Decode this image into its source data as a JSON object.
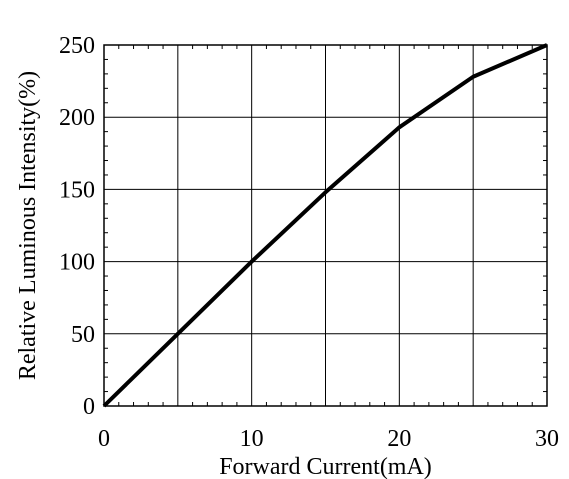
{
  "chart_data": {
    "type": "line",
    "title": "",
    "xlabel": "Forward Current(mA)",
    "ylabel": "Relative Luminous Intensity(%)",
    "xlim": [
      0,
      30
    ],
    "ylim": [
      0,
      250
    ],
    "grid": true,
    "x_ticks": [
      0,
      10,
      20,
      30
    ],
    "x_tick_labels": [
      "0",
      "10",
      "20",
      "30"
    ],
    "y_ticks": [
      0,
      50,
      100,
      150,
      200,
      250
    ],
    "y_tick_labels": [
      "0",
      "50",
      "100",
      "150",
      "200",
      "250"
    ],
    "x_gridlines": [
      5,
      10,
      15,
      20,
      25
    ],
    "y_gridlines": [
      50,
      100,
      150,
      200
    ],
    "series": [
      {
        "x": [
          0,
          5,
          10,
          15,
          20,
          25,
          30
        ],
        "y": [
          0,
          50,
          100,
          148,
          193,
          228,
          252
        ],
        "color": "#000000"
      }
    ]
  }
}
